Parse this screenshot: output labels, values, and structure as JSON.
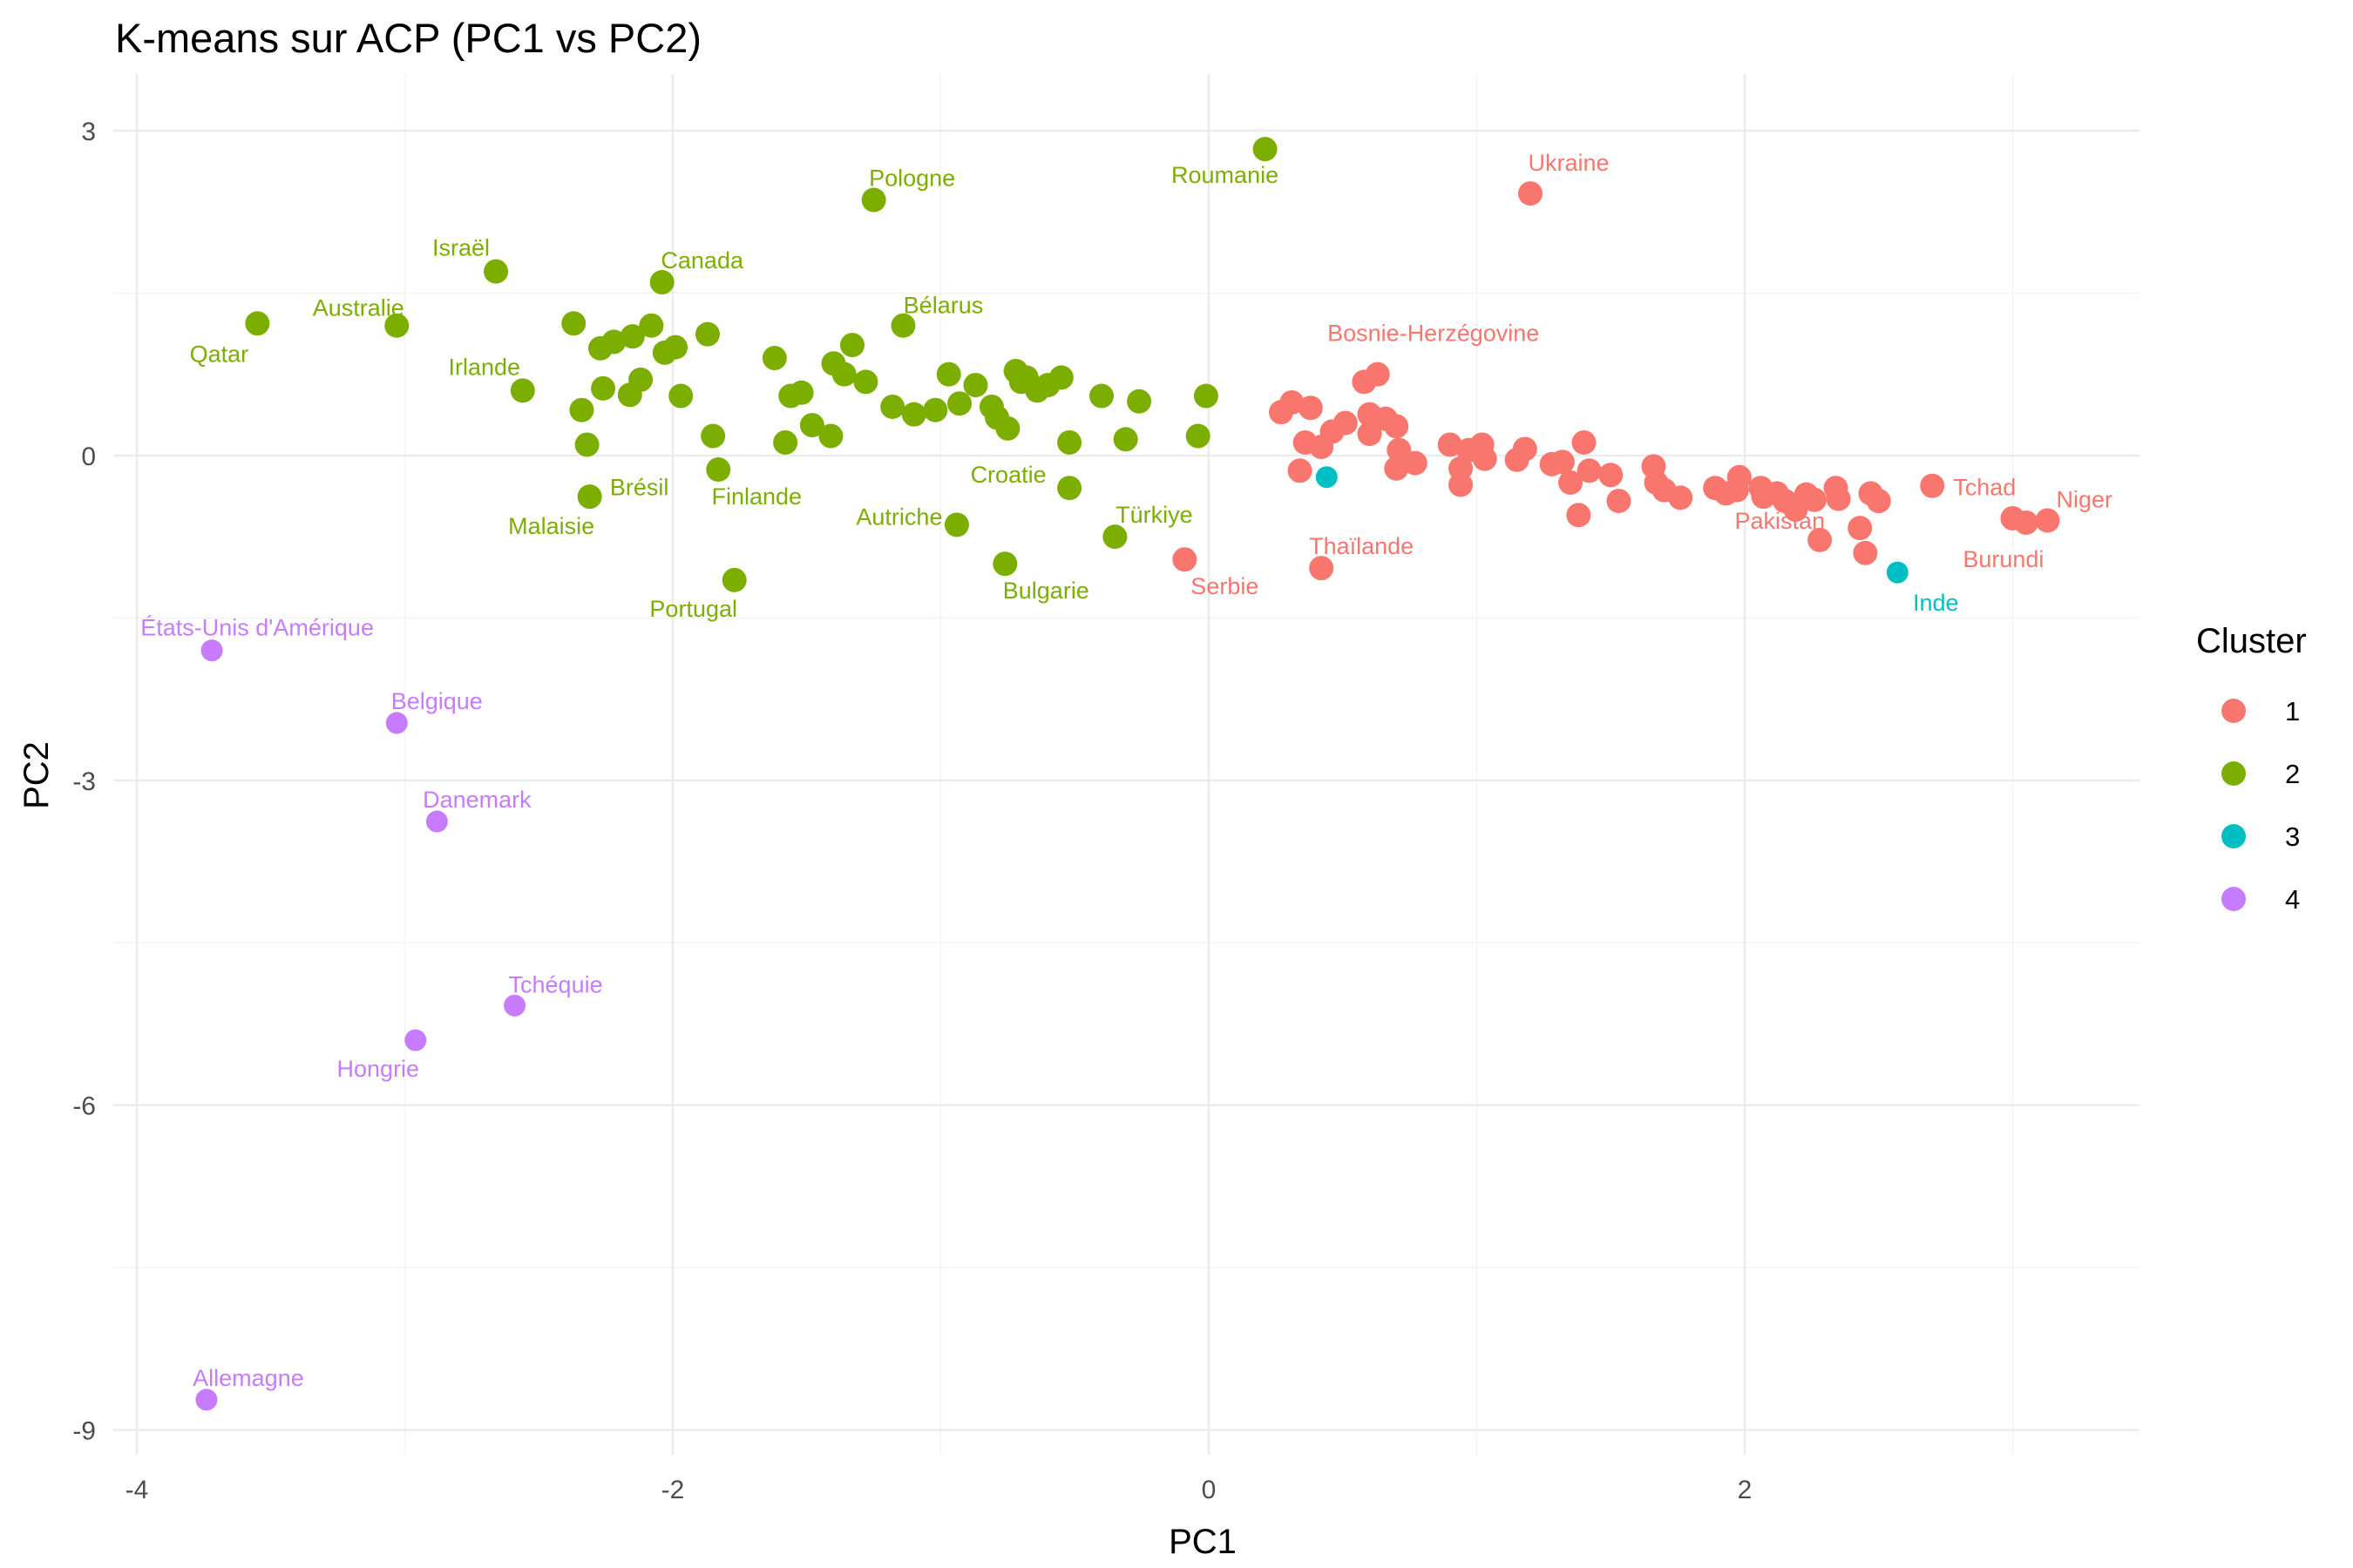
{
  "chart_data": {
    "type": "scatter",
    "title": "K-means sur ACP (PC1 vs PC2)",
    "xlabel": "PC1",
    "ylabel": "PC2",
    "xlim": [
      -4.0,
      3.5
    ],
    "ylim": [
      -9.3,
      3.3
    ],
    "x_ticks": [
      -4,
      -2,
      0,
      2
    ],
    "y_ticks": [
      3,
      0,
      -3,
      -6,
      -9
    ],
    "grid": true,
    "legend": {
      "title": "Cluster",
      "position": "right"
    },
    "series": [
      {
        "name": "1",
        "color": "#F8766D",
        "points": [
          [
            1.2,
            2.42,
            "Ukraine"
          ],
          [
            0.63,
            0.75,
            "Bosnie-Herzégovine"
          ],
          [
            -0.09,
            -0.96,
            "Serbie"
          ],
          [
            0.42,
            -1.04,
            "Thaïlande"
          ],
          [
            2.28,
            -0.78,
            "Pakistan"
          ],
          [
            2.7,
            -0.28,
            "Tchad"
          ],
          [
            3.13,
            -0.6,
            "Niger"
          ],
          [
            3.05,
            -0.62,
            "Burundi"
          ],
          [
            0.27,
            0.4,
            ""
          ],
          [
            0.31,
            0.49,
            ""
          ],
          [
            0.38,
            0.44,
            ""
          ],
          [
            0.36,
            0.12,
            ""
          ],
          [
            0.34,
            -0.14,
            ""
          ],
          [
            0.42,
            0.08,
            ""
          ],
          [
            0.46,
            0.22,
            ""
          ],
          [
            0.51,
            0.3,
            ""
          ],
          [
            0.58,
            0.68,
            ""
          ],
          [
            0.6,
            0.38,
            ""
          ],
          [
            0.6,
            0.2,
            ""
          ],
          [
            0.66,
            0.34,
            ""
          ],
          [
            0.7,
            0.27,
            ""
          ],
          [
            0.71,
            0.05,
            ""
          ],
          [
            0.7,
            -0.12,
            ""
          ],
          [
            0.77,
            -0.07,
            ""
          ],
          [
            0.9,
            0.1,
            ""
          ],
          [
            0.94,
            -0.12,
            ""
          ],
          [
            0.94,
            -0.27,
            ""
          ],
          [
            0.97,
            0.05,
            ""
          ],
          [
            1.02,
            0.1,
            ""
          ],
          [
            1.03,
            -0.03,
            ""
          ],
          [
            1.15,
            -0.04,
            ""
          ],
          [
            1.18,
            0.06,
            ""
          ],
          [
            1.28,
            -0.08,
            ""
          ],
          [
            1.32,
            -0.06,
            ""
          ],
          [
            1.35,
            -0.25,
            ""
          ],
          [
            1.4,
            0.12,
            ""
          ],
          [
            1.38,
            -0.55,
            ""
          ],
          [
            1.42,
            -0.14,
            ""
          ],
          [
            1.5,
            -0.18,
            ""
          ],
          [
            1.53,
            -0.42,
            ""
          ],
          [
            1.66,
            -0.1,
            ""
          ],
          [
            1.67,
            -0.25,
            ""
          ],
          [
            1.7,
            -0.32,
            ""
          ],
          [
            1.76,
            -0.39,
            ""
          ],
          [
            1.89,
            -0.3,
            ""
          ],
          [
            1.93,
            -0.35,
            ""
          ],
          [
            1.98,
            -0.2,
            ""
          ],
          [
            1.97,
            -0.32,
            ""
          ],
          [
            2.06,
            -0.3,
            ""
          ],
          [
            2.07,
            -0.38,
            ""
          ],
          [
            2.12,
            -0.35,
            ""
          ],
          [
            2.15,
            -0.42,
            ""
          ],
          [
            2.19,
            -0.5,
            ""
          ],
          [
            2.23,
            -0.36,
            ""
          ],
          [
            2.26,
            -0.41,
            ""
          ],
          [
            2.34,
            -0.3,
            ""
          ],
          [
            2.35,
            -0.4,
            ""
          ],
          [
            2.43,
            -0.67,
            ""
          ],
          [
            2.45,
            -0.9,
            ""
          ],
          [
            2.47,
            -0.35,
            ""
          ],
          [
            2.5,
            -0.42,
            ""
          ],
          [
            3.0,
            -0.58,
            ""
          ]
        ]
      },
      {
        "name": "2",
        "color": "#7CAE00",
        "points": [
          [
            -3.55,
            1.22,
            "Qatar"
          ],
          [
            -3.03,
            1.2,
            "Australie"
          ],
          [
            -2.66,
            1.7,
            "Israël"
          ],
          [
            -2.04,
            1.6,
            "Canada"
          ],
          [
            -2.56,
            0.6,
            "Irlande"
          ],
          [
            -2.32,
            0.1,
            "Brésil"
          ],
          [
            -2.31,
            -0.38,
            "Malaisie"
          ],
          [
            -1.83,
            -0.13,
            "Finlande"
          ],
          [
            -1.77,
            -1.15,
            "Portugal"
          ],
          [
            -1.25,
            2.36,
            "Pologne"
          ],
          [
            -1.14,
            1.2,
            "Bélarus"
          ],
          [
            0.21,
            2.83,
            "Roumanie"
          ],
          [
            -0.94,
            -0.64,
            "Autriche"
          ],
          [
            -0.52,
            -0.3,
            "Croatie"
          ],
          [
            -0.35,
            -0.75,
            "Türkiye"
          ],
          [
            -0.76,
            -1.0,
            "Bulgarie"
          ],
          [
            -2.37,
            1.22,
            ""
          ],
          [
            -2.34,
            0.42,
            ""
          ],
          [
            -2.27,
            0.99,
            ""
          ],
          [
            -2.22,
            1.05,
            ""
          ],
          [
            -2.26,
            0.62,
            ""
          ],
          [
            -2.15,
            1.1,
            ""
          ],
          [
            -2.08,
            1.2,
            ""
          ],
          [
            -2.12,
            0.7,
            ""
          ],
          [
            -2.16,
            0.56,
            ""
          ],
          [
            -2.03,
            0.95,
            ""
          ],
          [
            -1.99,
            1.0,
            ""
          ],
          [
            -1.97,
            0.55,
            ""
          ],
          [
            -1.87,
            1.12,
            ""
          ],
          [
            -1.85,
            0.18,
            ""
          ],
          [
            -1.62,
            0.9,
            ""
          ],
          [
            -1.56,
            0.55,
            ""
          ],
          [
            -1.52,
            0.58,
            ""
          ],
          [
            -1.58,
            0.12,
            ""
          ],
          [
            -1.48,
            0.28,
            ""
          ],
          [
            -1.4,
            0.85,
            ""
          ],
          [
            -1.33,
            1.02,
            ""
          ],
          [
            -1.41,
            0.18,
            ""
          ],
          [
            -1.36,
            0.75,
            ""
          ],
          [
            -1.28,
            0.68,
            ""
          ],
          [
            -1.18,
            0.45,
            ""
          ],
          [
            -1.1,
            0.38,
            ""
          ],
          [
            -1.02,
            0.42,
            ""
          ],
          [
            -0.97,
            0.75,
            ""
          ],
          [
            -0.93,
            0.48,
            ""
          ],
          [
            -0.87,
            0.65,
            ""
          ],
          [
            -0.81,
            0.45,
            ""
          ],
          [
            -0.79,
            0.35,
            ""
          ],
          [
            -0.75,
            0.25,
            ""
          ],
          [
            -0.72,
            0.78,
            ""
          ],
          [
            -0.7,
            0.68,
            ""
          ],
          [
            -0.68,
            0.72,
            ""
          ],
          [
            -0.64,
            0.6,
            ""
          ],
          [
            -0.6,
            0.65,
            ""
          ],
          [
            -0.55,
            0.72,
            ""
          ],
          [
            -0.52,
            0.12,
            ""
          ],
          [
            -0.4,
            0.55,
            ""
          ],
          [
            -0.31,
            0.15,
            ""
          ],
          [
            -0.26,
            0.5,
            ""
          ],
          [
            -0.04,
            0.18,
            ""
          ],
          [
            -0.01,
            0.55,
            ""
          ]
        ]
      },
      {
        "name": "3",
        "color": "#00BFC4",
        "points": [
          [
            0.44,
            -0.2,
            ""
          ],
          [
            2.57,
            -1.08,
            "Inde"
          ]
        ]
      },
      {
        "name": "4",
        "color": "#C77CFF",
        "points": [
          [
            -3.72,
            -1.8,
            "États-Unis d'Amérique"
          ],
          [
            -3.03,
            -2.47,
            "Belgique"
          ],
          [
            -2.88,
            -3.38,
            "Danemark"
          ],
          [
            -2.59,
            -5.08,
            "Tchéquie"
          ],
          [
            -2.96,
            -5.4,
            "Hongrie"
          ],
          [
            -3.74,
            -8.72,
            "Allemagne"
          ]
        ]
      }
    ]
  }
}
